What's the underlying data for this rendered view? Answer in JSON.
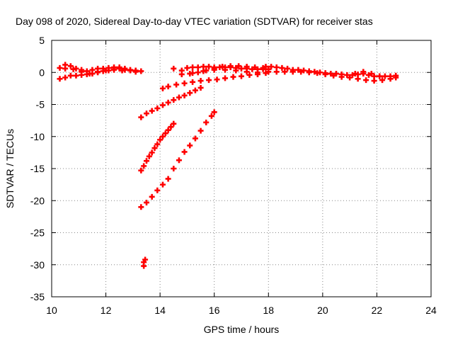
{
  "chart_data": {
    "type": "scatter",
    "title": "Day 098 of 2020, Sidereal Day-to-day VTEC variation (SDTVAR) for receiver stas",
    "xlabel": "GPS time / hours",
    "ylabel": "SDTVAR / TECUs",
    "xlim": [
      10,
      24
    ],
    "ylim": [
      -35,
      5
    ],
    "xticks": [
      "10",
      "12",
      "14",
      "16",
      "18",
      "20",
      "22",
      "24"
    ],
    "yticks": [
      "5",
      "0",
      "-5",
      "-10",
      "-15",
      "-20",
      "-25",
      "-30",
      "-35"
    ],
    "grid": true,
    "marker": "+",
    "series_color": "#ff0000",
    "series": [
      {
        "values": [
          [
            10.3,
            0.7
          ],
          [
            10.5,
            1.2
          ],
          [
            10.7,
            1.0
          ],
          [
            10.9,
            0.6
          ],
          [
            11.1,
            0.4
          ],
          [
            11.3,
            0.2
          ],
          [
            11.5,
            0.4
          ],
          [
            11.7,
            0.6
          ],
          [
            11.9,
            0.6
          ],
          [
            12.1,
            0.7
          ],
          [
            12.3,
            0.8
          ],
          [
            12.5,
            0.8
          ],
          [
            12.7,
            0.6
          ],
          [
            12.9,
            0.4
          ],
          [
            13.1,
            0.3
          ],
          [
            13.3,
            0.2
          ],
          [
            10.3,
            -1.0
          ],
          [
            10.5,
            -0.8
          ],
          [
            10.7,
            -0.5
          ],
          [
            10.9,
            -0.5
          ],
          [
            11.1,
            -0.4
          ],
          [
            11.3,
            -0.3
          ],
          [
            11.5,
            -0.2
          ],
          [
            11.7,
            0.0
          ],
          [
            11.9,
            0.2
          ],
          [
            12.1,
            0.3
          ],
          [
            12.3,
            0.5
          ],
          [
            12.5,
            0.6
          ],
          [
            12.7,
            0.4
          ],
          [
            12.9,
            0.3
          ],
          [
            13.1,
            0.1
          ],
          [
            10.5,
            0.6
          ],
          [
            10.8,
            0.5
          ],
          [
            11.1,
            0.1
          ],
          [
            11.4,
            -0.2
          ],
          [
            11.7,
            0.1
          ],
          [
            12.0,
            0.3
          ],
          [
            12.3,
            0.4
          ],
          [
            12.6,
            0.3
          ],
          [
            13.3,
            -7.0
          ],
          [
            13.5,
            -6.4
          ],
          [
            13.7,
            -6.0
          ],
          [
            13.9,
            -5.6
          ],
          [
            14.1,
            -5.1
          ],
          [
            14.3,
            -4.7
          ],
          [
            14.5,
            -4.3
          ],
          [
            14.7,
            -3.9
          ],
          [
            14.9,
            -3.6
          ],
          [
            15.1,
            -3.2
          ],
          [
            15.3,
            -2.8
          ],
          [
            15.5,
            -2.4
          ],
          [
            14.1,
            -2.5
          ],
          [
            14.3,
            -2.2
          ],
          [
            14.6,
            -1.9
          ],
          [
            14.9,
            -1.7
          ],
          [
            15.2,
            -1.5
          ],
          [
            15.5,
            -1.3
          ],
          [
            15.8,
            -1.2
          ],
          [
            16.1,
            -1.1
          ],
          [
            16.4,
            -0.9
          ],
          [
            16.7,
            -0.7
          ],
          [
            17.0,
            -0.6
          ],
          [
            17.3,
            -0.4
          ],
          [
            17.6,
            -0.3
          ],
          [
            17.9,
            -0.1
          ],
          [
            15.0,
            0.7
          ],
          [
            15.2,
            0.8
          ],
          [
            15.4,
            0.8
          ],
          [
            15.6,
            0.9
          ],
          [
            15.8,
            0.9
          ],
          [
            16.0,
            0.8
          ],
          [
            16.2,
            0.8
          ],
          [
            16.4,
            0.8
          ],
          [
            16.6,
            0.8
          ],
          [
            16.8,
            0.7
          ],
          [
            17.0,
            0.6
          ],
          [
            17.2,
            0.6
          ],
          [
            17.4,
            0.5
          ],
          [
            17.6,
            0.5
          ],
          [
            17.8,
            0.5
          ],
          [
            18.0,
            0.5
          ],
          [
            14.5,
            0.6
          ],
          [
            14.8,
            0.3
          ],
          [
            15.1,
            -0.2
          ],
          [
            15.4,
            0.0
          ],
          [
            15.7,
            0.3
          ],
          [
            16.0,
            0.6
          ],
          [
            16.3,
            0.9
          ],
          [
            16.6,
            1.0
          ],
          [
            16.9,
            1.0
          ],
          [
            17.2,
            0.9
          ],
          [
            17.5,
            0.8
          ],
          [
            17.8,
            0.7
          ],
          [
            14.8,
            -0.3
          ],
          [
            15.2,
            -0.1
          ],
          [
            15.6,
            0.2
          ],
          [
            16.0,
            0.4
          ],
          [
            16.4,
            0.4
          ],
          [
            16.8,
            0.3
          ],
          [
            17.2,
            0.1
          ],
          [
            17.6,
            0.0
          ],
          [
            17.9,
            0.9
          ],
          [
            18.1,
            0.9
          ],
          [
            18.3,
            0.8
          ],
          [
            18.5,
            0.7
          ],
          [
            18.7,
            0.6
          ],
          [
            18.9,
            0.4
          ],
          [
            19.1,
            0.4
          ],
          [
            19.3,
            0.3
          ],
          [
            19.5,
            0.2
          ],
          [
            19.7,
            0.1
          ],
          [
            19.9,
            0.0
          ],
          [
            20.1,
            -0.1
          ],
          [
            20.3,
            -0.2
          ],
          [
            20.5,
            -0.2
          ],
          [
            20.7,
            -0.3
          ],
          [
            20.9,
            -0.4
          ],
          [
            21.1,
            -0.4
          ],
          [
            21.3,
            -0.3
          ],
          [
            21.5,
            -0.2
          ],
          [
            21.7,
            -0.4
          ],
          [
            21.9,
            -0.6
          ],
          [
            22.1,
            -0.6
          ],
          [
            22.3,
            -0.6
          ],
          [
            22.5,
            -0.6
          ],
          [
            22.7,
            -0.5
          ],
          [
            18.0,
            0.1
          ],
          [
            18.3,
            0.1
          ],
          [
            18.6,
            0.1
          ],
          [
            18.9,
            0.1
          ],
          [
            19.2,
            0.1
          ],
          [
            19.5,
            0.0
          ],
          [
            19.8,
            -0.1
          ],
          [
            20.1,
            -0.3
          ],
          [
            20.4,
            -0.5
          ],
          [
            20.7,
            -0.7
          ],
          [
            21.0,
            -0.8
          ],
          [
            21.3,
            -1.0
          ],
          [
            21.6,
            -1.2
          ],
          [
            21.9,
            -1.3
          ],
          [
            22.2,
            -1.2
          ],
          [
            22.5,
            -1.0
          ],
          [
            22.7,
            -0.8
          ],
          [
            21.2,
            -0.2
          ],
          [
            21.5,
            0.1
          ],
          [
            21.8,
            -0.2
          ],
          [
            22.1,
            -0.6
          ],
          [
            13.3,
            -15.3
          ],
          [
            13.4,
            -14.6
          ],
          [
            13.5,
            -13.8
          ],
          [
            13.6,
            -13.1
          ],
          [
            13.7,
            -12.5
          ],
          [
            13.8,
            -11.8
          ],
          [
            13.9,
            -11.2
          ],
          [
            14.0,
            -10.5
          ],
          [
            14.1,
            -10.0
          ],
          [
            14.2,
            -9.5
          ],
          [
            14.3,
            -9.0
          ],
          [
            14.4,
            -8.5
          ],
          [
            14.5,
            -8.0
          ],
          [
            13.3,
            -21.0
          ],
          [
            13.5,
            -20.3
          ],
          [
            13.7,
            -19.4
          ],
          [
            13.9,
            -18.4
          ],
          [
            14.1,
            -17.5
          ],
          [
            14.3,
            -16.6
          ],
          [
            14.5,
            -15.0
          ],
          [
            14.7,
            -13.7
          ],
          [
            14.9,
            -12.4
          ],
          [
            15.1,
            -11.4
          ],
          [
            15.3,
            -10.3
          ],
          [
            15.5,
            -9.1
          ],
          [
            15.7,
            -7.8
          ],
          [
            15.9,
            -6.8
          ],
          [
            16.0,
            -6.2
          ],
          [
            13.4,
            -30.2
          ],
          [
            13.4,
            -29.6
          ],
          [
            13.45,
            -29.2
          ]
        ]
      }
    ]
  }
}
